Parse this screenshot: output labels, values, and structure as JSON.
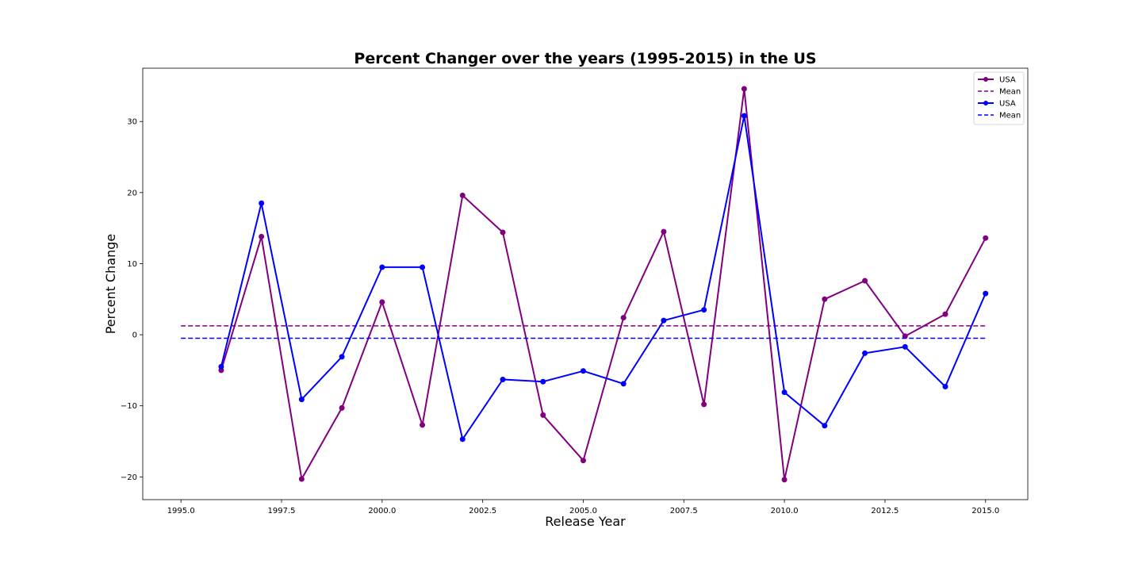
{
  "chart_data": {
    "type": "line",
    "title": "Percent Changer over the years (1995-2015) in the US",
    "xlabel": "Release Year",
    "ylabel": "Percent Change",
    "xlim": [
      1994.05,
      2016.05
    ],
    "ylim": [
      -23.2,
      37.5
    ],
    "xticks": [
      1995.0,
      1997.5,
      2000.0,
      2002.5,
      2005.0,
      2007.5,
      2010.0,
      2012.5,
      2015.0
    ],
    "xtick_labels": [
      "1995.0",
      "1997.5",
      "2000.0",
      "2002.5",
      "2005.0",
      "2007.5",
      "2010.0",
      "2012.5",
      "2015.0"
    ],
    "yticks": [
      -20,
      -10,
      0,
      10,
      20,
      30
    ],
    "ytick_labels": [
      "−20",
      "−10",
      "0",
      "10",
      "20",
      "30"
    ],
    "grid": false,
    "legend_position": "top-right",
    "x": [
      1996,
      1997,
      1998,
      1999,
      2000,
      2001,
      2002,
      2003,
      2004,
      2005,
      2006,
      2007,
      2008,
      2009,
      2010,
      2011,
      2012,
      2013,
      2014,
      2015
    ],
    "series": [
      {
        "name": "USA",
        "color": "#800080",
        "style": "solid-with-markers",
        "values": [
          -5.0,
          13.8,
          -20.3,
          -10.3,
          4.6,
          -12.7,
          19.6,
          14.4,
          -11.3,
          -17.7,
          2.4,
          14.5,
          -9.8,
          34.6,
          -20.4,
          5.0,
          7.6,
          -0.2,
          2.9,
          13.6
        ]
      },
      {
        "name": "Mean",
        "color": "#800080",
        "style": "dashed",
        "x_range": [
          1995,
          2015
        ],
        "value": 1.25
      },
      {
        "name": "USA",
        "color": "#0000ff",
        "style": "solid-with-markers",
        "values": [
          -4.5,
          18.5,
          -9.1,
          -3.1,
          9.5,
          9.5,
          -14.7,
          -6.3,
          -6.6,
          -5.1,
          -6.9,
          2.0,
          3.5,
          30.8,
          -8.1,
          -12.8,
          -2.6,
          -1.7,
          -7.3,
          5.8
        ]
      },
      {
        "name": "Mean",
        "color": "#0000ff",
        "style": "dashed",
        "x_range": [
          1995,
          2015
        ],
        "value": -0.5
      }
    ]
  }
}
